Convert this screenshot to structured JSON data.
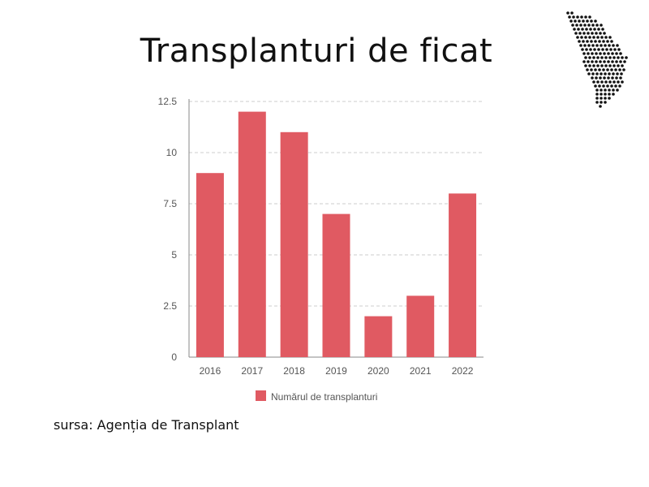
{
  "title": "Transplanturi de ficat",
  "source": "sursa: Agenția de Transplant",
  "logo": {
    "name": "moldova-map-dots"
  },
  "colors": {
    "bar": "#e05a62",
    "grid": "#cccccc",
    "axis": "#888888",
    "text": "#555555"
  },
  "chart_data": {
    "type": "bar",
    "categories": [
      "2016",
      "2017",
      "2018",
      "2019",
      "2020",
      "2021",
      "2022"
    ],
    "series": [
      {
        "name": "Numărul de transplanturi",
        "values": [
          9,
          12,
          11,
          7,
          2,
          3,
          8
        ]
      }
    ],
    "yticks": [
      "0",
      "2.5",
      "5",
      "7.5",
      "10",
      "12.5"
    ],
    "ylim": [
      0,
      12.5
    ],
    "grid": true,
    "legend": "bottom"
  }
}
